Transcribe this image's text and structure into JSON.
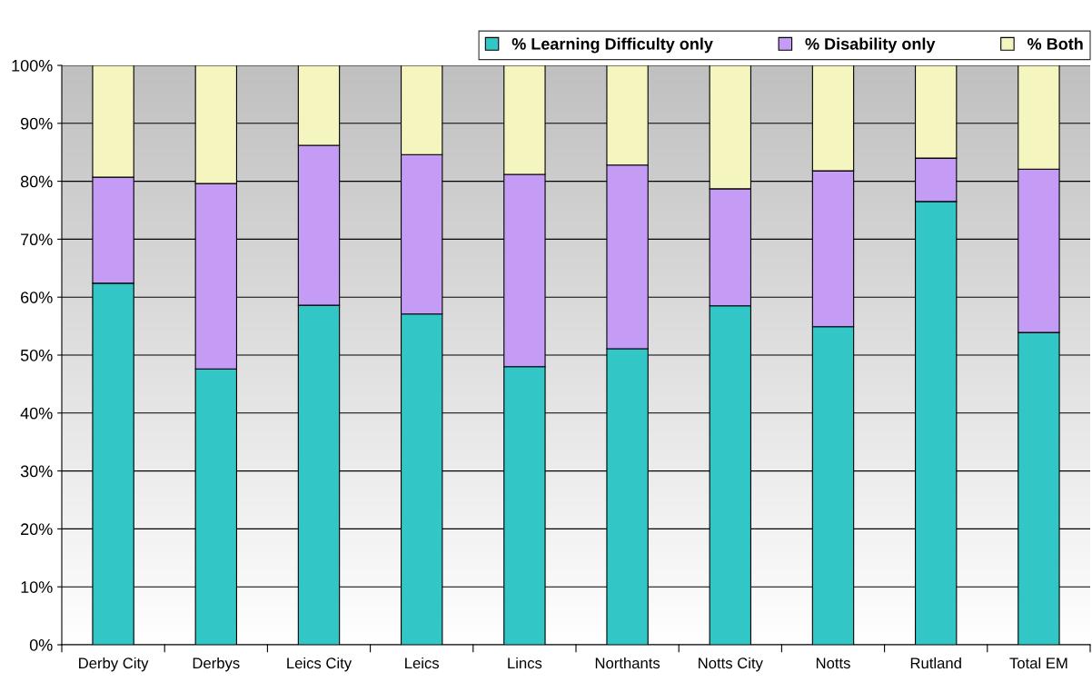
{
  "chart_data": {
    "type": "bar",
    "stacked": true,
    "categories": [
      "Derby City",
      "Derbys",
      "Leics City",
      "Leics",
      "Lincs",
      "Northants",
      "Notts City",
      "Notts",
      "Rutland",
      "Total EM"
    ],
    "series": [
      {
        "name": "% Learning Difficulty only",
        "color": "#33c6c6",
        "values": [
          62.4,
          47.6,
          58.6,
          57.1,
          48.0,
          51.1,
          58.5,
          54.9,
          76.5,
          53.9
        ]
      },
      {
        "name": "% Disability only",
        "color": "#c49cf5",
        "values": [
          18.3,
          32.0,
          27.6,
          27.5,
          33.2,
          31.7,
          20.2,
          26.9,
          7.5,
          28.2
        ]
      },
      {
        "name": "% Both",
        "color": "#f5f5c0",
        "values": [
          19.3,
          20.4,
          13.8,
          15.4,
          18.8,
          17.2,
          21.3,
          18.2,
          16.0,
          17.9
        ]
      }
    ],
    "ylim": [
      0,
      100
    ],
    "yticks": [
      {
        "value": 0,
        "label": "0%"
      },
      {
        "value": 10,
        "label": "10%"
      },
      {
        "value": 20,
        "label": "20%"
      },
      {
        "value": 30,
        "label": "30%"
      },
      {
        "value": 40,
        "label": "40%"
      },
      {
        "value": 50,
        "label": "50%"
      },
      {
        "value": 60,
        "label": "60%"
      },
      {
        "value": 70,
        "label": "70%"
      },
      {
        "value": 80,
        "label": "80%"
      },
      {
        "value": 90,
        "label": "90%"
      },
      {
        "value": 100,
        "label": "100%"
      }
    ],
    "grid": "y",
    "legend": "top right"
  }
}
